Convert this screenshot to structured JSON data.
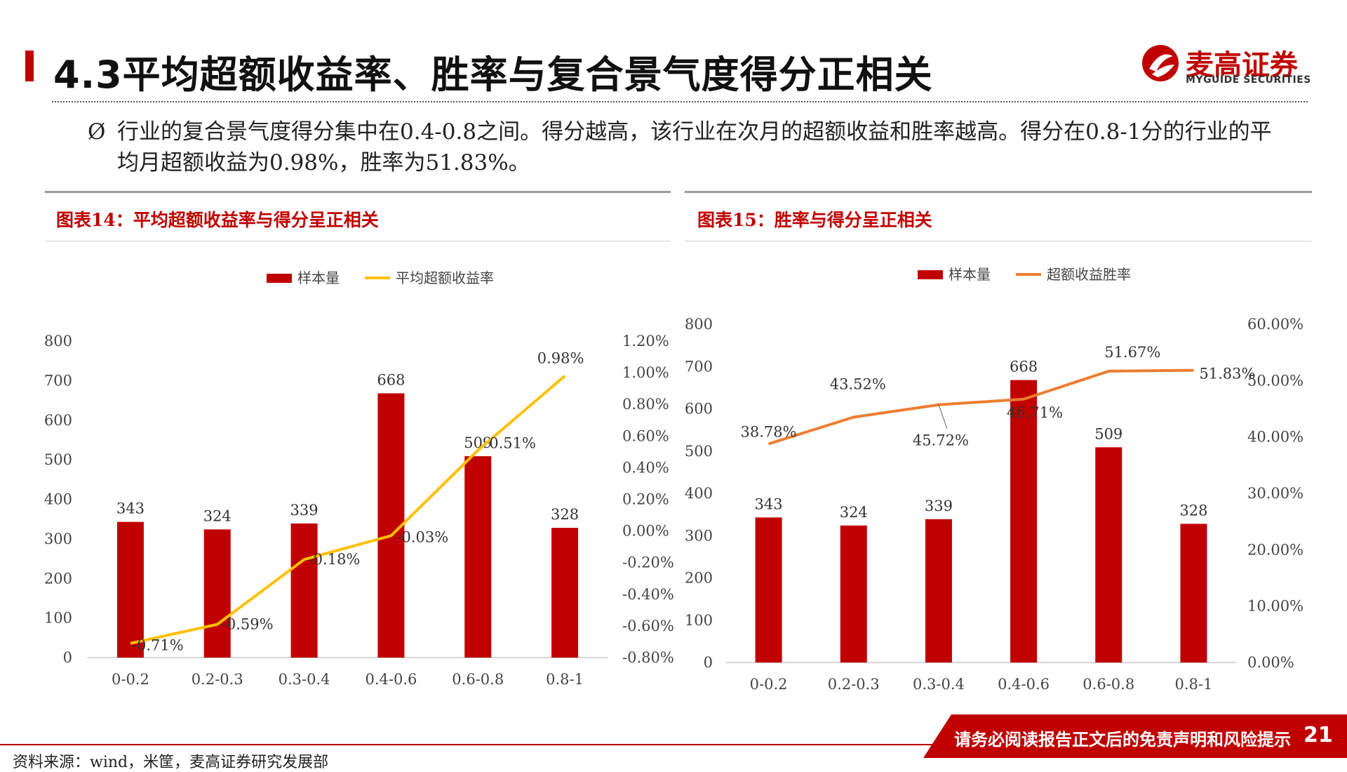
{
  "header": {
    "title": "4.3平均超额收益率、胜率与复合景气度得分正相关",
    "logo_cn": "麦高证券",
    "logo_en": "MYGUIDE SECURITIES",
    "logo_icon": "myguide-logo-icon"
  },
  "bullet": {
    "marker": "Ø",
    "text": "行业的复合景气度得分集中在0.4-0.8之间。得分越高，该行业在次月的超额收益和胜率越高。得分在0.8-1分的行业的平均月超额收益为0.98%，胜率为51.83%。"
  },
  "colors": {
    "accent": "#c00000",
    "bar": "#c00000",
    "line1": "#ffc000",
    "line2": "#ed7d31"
  },
  "chart_data": [
    {
      "type": "bar",
      "title": "图表14：平均超额收益率与得分呈正相关",
      "categories": [
        "0-0.2",
        "0.2-0.3",
        "0.3-0.4",
        "0.4-0.6",
        "0.6-0.8",
        "0.8-1"
      ],
      "series": [
        {
          "name": "样本量",
          "type": "bar",
          "axis": "left",
          "values": [
            343,
            324,
            339,
            668,
            509,
            328
          ],
          "labels": [
            "343",
            "324",
            "339",
            "668",
            "509",
            "328"
          ]
        },
        {
          "name": "平均超额收益率",
          "type": "line",
          "axis": "right",
          "values": [
            -0.71,
            -0.59,
            -0.18,
            -0.03,
            0.51,
            0.98
          ],
          "labels": [
            "-0.71%",
            "-0.59%",
            "-0.18%",
            "-0.03%",
            "0.51%",
            "0.98%"
          ]
        }
      ],
      "left_axis": {
        "min": 0,
        "max": 800,
        "ticks": [
          "0",
          "100",
          "200",
          "300",
          "400",
          "500",
          "600",
          "700",
          "800"
        ]
      },
      "right_axis": {
        "min": -0.8,
        "max": 1.2,
        "ticks": [
          "-0.80%",
          "-0.60%",
          "-0.40%",
          "-0.20%",
          "0.00%",
          "0.20%",
          "0.40%",
          "0.60%",
          "0.80%",
          "1.00%",
          "1.20%"
        ]
      },
      "legend": "top-center",
      "grid": false
    },
    {
      "type": "bar",
      "title": "图表15：胜率与得分呈正相关",
      "categories": [
        "0-0.2",
        "0.2-0.3",
        "0.3-0.4",
        "0.4-0.6",
        "0.6-0.8",
        "0.8-1"
      ],
      "series": [
        {
          "name": "样本量",
          "type": "bar",
          "axis": "left",
          "values": [
            343,
            324,
            339,
            668,
            509,
            328
          ],
          "labels": [
            "343",
            "324",
            "339",
            "668",
            "509",
            "328"
          ]
        },
        {
          "name": "超额收益胜率",
          "type": "line",
          "axis": "right",
          "values": [
            38.78,
            43.52,
            45.72,
            46.71,
            51.67,
            51.83
          ],
          "labels": [
            "38.78%",
            "43.52%",
            "45.72%",
            "46.71%",
            "51.67%",
            "51.83%"
          ]
        }
      ],
      "left_axis": {
        "min": 0,
        "max": 800,
        "ticks": [
          "0",
          "100",
          "200",
          "300",
          "400",
          "500",
          "600",
          "700",
          "800"
        ]
      },
      "right_axis": {
        "min": 0,
        "max": 60,
        "ticks": [
          "0.00%",
          "10.00%",
          "20.00%",
          "30.00%",
          "40.00%",
          "50.00%",
          "60.00%"
        ]
      },
      "legend": "top-center",
      "grid": false
    }
  ],
  "footer": {
    "source": "资料来源：wind，米筐，麦高证券研究发展部",
    "disclaimer": "请务必阅读报告正文后的免责声明和风险提示",
    "page": "21"
  }
}
